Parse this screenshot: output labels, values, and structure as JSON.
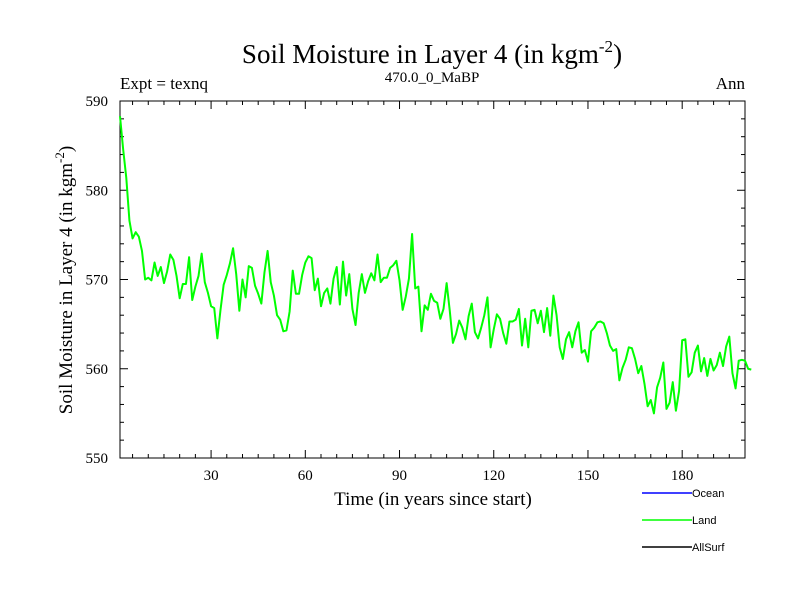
{
  "chart_data": {
    "type": "line",
    "title": "Soil Moisture in Layer 4 (in kgm",
    "title_superscript": "-2",
    "title_close": ")",
    "subtitle_left": "Expt = texnq",
    "subtitle_center": "470.0_0_MaBP",
    "subtitle_right": "Ann",
    "xlabel": "Time (in years since start)",
    "ylabel": "Soil Moisture in Layer 4 (in kgm",
    "ylabel_superscript": "-2",
    "ylabel_close": ")",
    "xlim": [
      1,
      200
    ],
    "ylim": [
      550,
      590
    ],
    "x_ticks": [
      30,
      60,
      90,
      120,
      150,
      180
    ],
    "x_tick_labels": [
      "30",
      "60",
      "90",
      "120",
      "150",
      "180"
    ],
    "y_ticks": [
      550,
      560,
      570,
      580,
      590
    ],
    "y_tick_labels": [
      "550",
      "560",
      "570",
      "580",
      "590"
    ],
    "legend": [
      {
        "name": "Ocean",
        "color": "#0000ff"
      },
      {
        "name": "Land",
        "color": "#00ff00"
      },
      {
        "name": "AllSurf",
        "color": "#000000"
      }
    ],
    "series": [
      {
        "name": "Land",
        "color": "#00ff00",
        "x_start": 1,
        "x_step": 1,
        "values": [
          588.3,
          584.6,
          581.4,
          576.6,
          574.6,
          575.3,
          574.8,
          573.2,
          570.0,
          570.2,
          569.9,
          571.9,
          570.4,
          571.4,
          569.6,
          570.9,
          572.8,
          572.2,
          570.4,
          567.9,
          569.5,
          569.5,
          572.5,
          567.7,
          569.2,
          570.4,
          572.9,
          569.7,
          568.5,
          567.0,
          566.8,
          563.4,
          566.6,
          569.4,
          570.5,
          571.8,
          573.5,
          570.6,
          566.5,
          570.0,
          568.0,
          571.5,
          571.3,
          569.3,
          568.4,
          567.3,
          570.8,
          573.2,
          569.7,
          568.2,
          566.0,
          565.5,
          564.2,
          564.3,
          566.4,
          571.0,
          568.4,
          568.4,
          570.5,
          571.9,
          572.6,
          572.4,
          568.8,
          570.1,
          567.0,
          568.5,
          569.0,
          567.3,
          570.1,
          571.4,
          567.2,
          572.0,
          568.2,
          570.6,
          566.7,
          564.9,
          568.5,
          570.6,
          568.5,
          569.8,
          570.7,
          569.9,
          572.8,
          569.7,
          570.2,
          570.2,
          571.3,
          571.6,
          572.1,
          569.9,
          566.6,
          568.1,
          570.1,
          575.1,
          569.0,
          569.2,
          564.2,
          567.1,
          566.6,
          568.4,
          567.6,
          567.4,
          565.6,
          566.7,
          569.6,
          566.5,
          562.9,
          563.9,
          565.4,
          564.6,
          563.3,
          565.9,
          567.3,
          564.1,
          563.4,
          564.6,
          566.0,
          568.0,
          562.4,
          564.4,
          566.1,
          565.6,
          564.0,
          562.8,
          565.3,
          565.3,
          565.5,
          566.7,
          562.6,
          565.6,
          562.4,
          566.5,
          566.6,
          565.1,
          566.5,
          564.1,
          566.8,
          563.7,
          568.2,
          566.0,
          562.4,
          561.1,
          563.3,
          564.1,
          562.4,
          564.2,
          565.2,
          561.8,
          562.1,
          560.8,
          564.2,
          564.6,
          565.2,
          565.3,
          565.1,
          564.0,
          562.6,
          562.0,
          562.2,
          558.7,
          560.1,
          561.0,
          562.4,
          562.3,
          561.1,
          559.5,
          560.3,
          558.3,
          555.8,
          556.5,
          555.0,
          557.9,
          559.0,
          560.7,
          555.5,
          556.2,
          558.5,
          555.3,
          557.5,
          563.2,
          563.3,
          559.1,
          559.6,
          561.8,
          562.6,
          559.7,
          561.2,
          559.2,
          561.1,
          559.8,
          560.4,
          561.8,
          560.3,
          562.5,
          563.6,
          559.5,
          557.8,
          560.9,
          561.0,
          560.9,
          560.0,
          559.9
        ]
      }
    ]
  }
}
